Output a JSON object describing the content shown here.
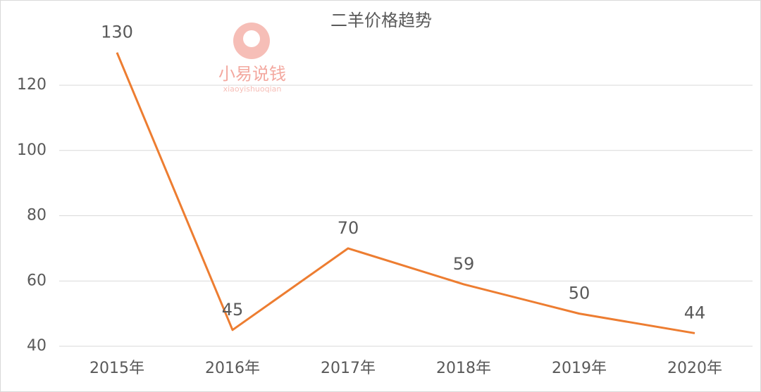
{
  "chart_data": {
    "type": "line",
    "title": "二羊价格趋势",
    "watermark": {
      "name": "小易说钱",
      "pinyin": "xiaoyishuoqian"
    },
    "categories": [
      "2015年",
      "2016年",
      "2017年",
      "2018年",
      "2019年",
      "2020年"
    ],
    "values": [
      130,
      45,
      70,
      59,
      50,
      44
    ],
    "color": "#ed7d31",
    "ylim": [
      40,
      130
    ],
    "yticks": [
      40,
      60,
      80,
      100,
      120
    ],
    "grid": true
  }
}
